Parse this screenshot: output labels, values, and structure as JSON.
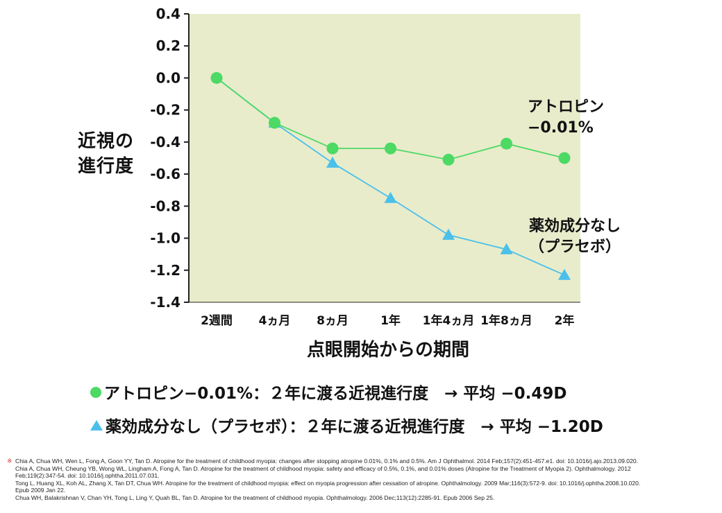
{
  "chart_data": {
    "type": "line",
    "ylabel": "近視の進行度",
    "ylabel_lines": [
      "近視の",
      "進行度"
    ],
    "xlabel": "点眼開始からの期間",
    "categories": [
      "2週間",
      "4ヵ月",
      "8ヵ月",
      "1年",
      "1年4ヵ月",
      "1年8ヵ月",
      "2年"
    ],
    "ylim": [
      -1.4,
      0.4
    ],
    "yticks": [
      "0.4",
      "0.2",
      "0.0",
      "-0.2",
      "-0.4",
      "-0.6",
      "-0.8",
      "-1.0",
      "-1.2",
      "-1.4"
    ],
    "ytick_values": [
      0.4,
      0.2,
      0.0,
      -0.2,
      -0.4,
      -0.6,
      -0.8,
      -1.0,
      -1.2,
      -1.4
    ],
    "series": [
      {
        "name": "アトロピン−0.01%",
        "marker": "circle",
        "color": "#4cd964",
        "values": [
          0.0,
          -0.28,
          -0.44,
          -0.44,
          -0.51,
          -0.41,
          -0.5
        ]
      },
      {
        "name": "薬効成分なし(プラセボ)",
        "marker": "triangle",
        "color": "#4ac0ea",
        "values": [
          0.0,
          -0.28,
          -0.53,
          -0.75,
          -0.98,
          -1.07,
          -1.23
        ]
      }
    ],
    "plot_background": "#e8eccb"
  },
  "annotations": {
    "atropine_line1": "アトロピン",
    "atropine_line2": "−0.01%",
    "placebo_line1": "薬効成分なし",
    "placebo_line2": "（プラセボ）"
  },
  "summary": {
    "atropine": "アトロピン−0.01%：２年に渡る近視進行度　→ 平均 −0.49D",
    "placebo": "薬効成分なし（プラセボ）：２年に渡る近視進行度　→ 平均 −1.20D"
  },
  "references": {
    "mark": "※",
    "lines": [
      "Chia A, Chua WH, Wen L, Fong A, Goon YY, Tan D. Atropine for the treatment of childhood myopia: changes after stopping atropine 0.01%, 0.1% and 0.5%. Am J Ophthalmol. 2014 Feb;157(2):451-457.e1. doi: 10.1016/j.ajo.2013.09.020.",
      "Chia A, Chua WH, Cheung YB, Wong WL, Lingham A, Fong A, Tan D. Atropine for the treatment of childhood myopia: safety and efficacy of 0.5%, 0.1%, and 0.01% doses (Atropine for the Treatment of Myopia 2). Ophthalmology. 2012",
      "Feb;119(2):347-54. doi: 10.1016/j.ophtha.2011.07.031.",
      "Tong L, Huang XL, Koh AL, Zhang X, Tan DT, Chua WH. Atropine for the treatment of childhood myopia: effect on myopia progression after cessation of atropine. Ophthalmology. 2009 Mar;116(3):572-9. doi: 10.1016/j.ophtha.2008.10.020.",
      "Epub 2009 Jan 22.",
      "Chua WH, Balakrishnan V, Chan YH, Tong L, Ling Y, Quah BL, Tan D. Atropine for the treatment of childhood myopia. Ophthalmology. 2006 Dec;113(12):2285-91. Epub 2006 Sep 25."
    ]
  }
}
